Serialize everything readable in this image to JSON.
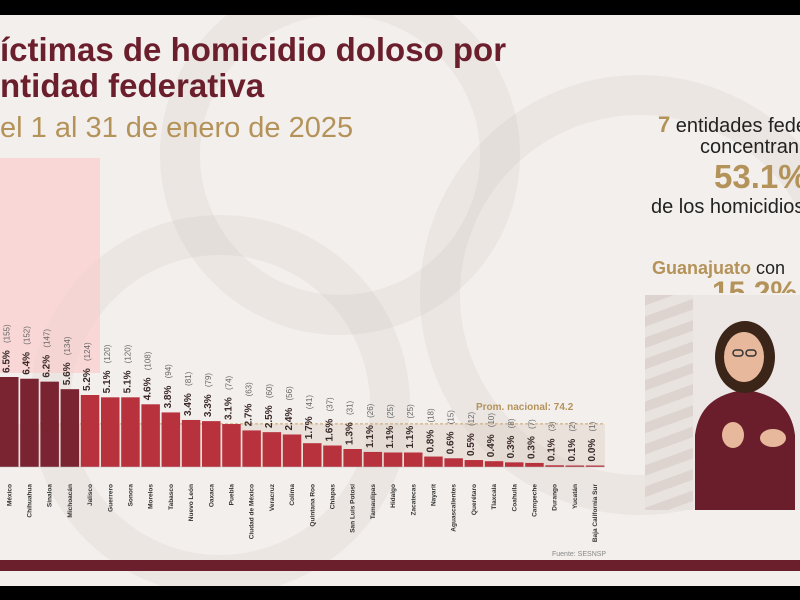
{
  "title_line1": "íctimas de homicidio doloso por",
  "title_line2": "ntidad federativa",
  "subtitle": "el 1 al 31 de enero de 2025",
  "stats": {
    "count": "7",
    "count_rest": " entidades fede",
    "line2": "concentran",
    "pct": "53.1%",
    "line3": "de los homicidios",
    "gto_state": "Guanajuato",
    "gto_rest": " con",
    "gto_pct": "15.2%"
  },
  "source": "Fuente: SESNSP",
  "colors": {
    "dark_bar": "#7a2331",
    "mid_bar": "#b8323e",
    "avg_line": "#c9a36b",
    "brand": "#6b1f2d",
    "gold": "#b4935a"
  },
  "chart_data": {
    "type": "bar",
    "title": "",
    "xlabel": "",
    "ylabel": "",
    "average_label": "Prom. nacional: 74.2",
    "average_value": 74.2,
    "categories": [
      "México",
      "Chihuahua",
      "Sinaloa",
      "Michoacán",
      "Jalisco",
      "Guerrero",
      "Sonora",
      "Morelos",
      "Tabasco",
      "Nuevo León",
      "Oaxaca",
      "Puebla",
      "Ciudad de México",
      "Veracruz",
      "Colima",
      "Quintana Roo",
      "Chiapas",
      "San Luis Potosí",
      "Tamaulipas",
      "Hidalgo",
      "Zacatecas",
      "Nayarit",
      "Aguascalientes",
      "Querétaro",
      "Tlaxcala",
      "Coahuila",
      "Campeche",
      "Durango",
      "Yucatán",
      "Baja California Sur"
    ],
    "values": [
      155,
      152,
      147,
      134,
      124,
      120,
      120,
      108,
      94,
      81,
      79,
      74,
      63,
      60,
      56,
      41,
      37,
      31,
      26,
      25,
      25,
      18,
      15,
      12,
      10,
      8,
      7,
      3,
      2,
      1
    ],
    "pct_labels": [
      "6.5%",
      "6.4%",
      "6.2%",
      "5.6%",
      "5.2%",
      "5.1%",
      "5.1%",
      "4.6%",
      "3.8%",
      "3.4%",
      "3.3%",
      "3.1%",
      "2.7%",
      "2.5%",
      "2.4%",
      "1.7%",
      "1.6%",
      "1.3%",
      "1.1%",
      "1.1%",
      "1.1%",
      "0.8%",
      "0.6%",
      "0.5%",
      "0.4%",
      "0.3%",
      "0.3%",
      "0.1%",
      "0.1%",
      "0.0%"
    ],
    "count_labels": [
      "(155)",
      "(152)",
      "(147)",
      "(134)",
      "(124)",
      "(120)",
      "(120)",
      "(108)",
      "(94)",
      "(81)",
      "(79)",
      "(74)",
      "(63)",
      "(60)",
      "(56)",
      "(41)",
      "(37)",
      "(31)",
      "(26)",
      "(25)",
      "(25)",
      "(18)",
      "(15)",
      "(12)",
      "(10)",
      "(8)",
      "(7)",
      "(3)",
      "(2)",
      "(1)"
    ]
  }
}
